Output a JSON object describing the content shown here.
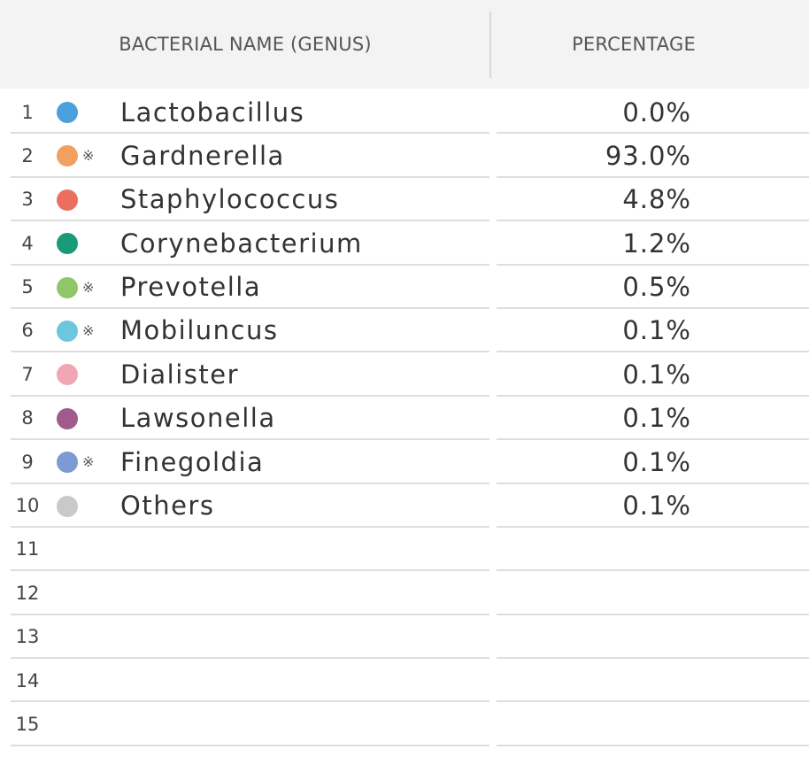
{
  "header": {
    "name_label": "BACTERIAL NAME (GENUS)",
    "percentage_label": "PERCENTAGE"
  },
  "rows": [
    {
      "num": "1",
      "name": "Lactobacillus",
      "mark": "",
      "pct": "0.0%",
      "color": "#4a9fdc"
    },
    {
      "num": "2",
      "name": "Gardnerella",
      "mark": "※",
      "pct": "93.0%",
      "color": "#f1a060"
    },
    {
      "num": "3",
      "name": "Staphylococcus",
      "mark": "",
      "pct": "4.8%",
      "color": "#ec6e5f"
    },
    {
      "num": "4",
      "name": "Corynebacterium",
      "mark": "",
      "pct": "1.2%",
      "color": "#1a9a78"
    },
    {
      "num": "5",
      "name": "Prevotella",
      "mark": "※",
      "pct": "0.5%",
      "color": "#8fc768"
    },
    {
      "num": "6",
      "name": "Mobiluncus",
      "mark": "※",
      "pct": "0.1%",
      "color": "#6cc6dc"
    },
    {
      "num": "7",
      "name": "Dialister",
      "mark": "",
      "pct": "0.1%",
      "color": "#f0a7b3"
    },
    {
      "num": "8",
      "name": "Lawsonella",
      "mark": "",
      "pct": "0.1%",
      "color": "#a05a8c"
    },
    {
      "num": "9",
      "name": "Finegoldia",
      "mark": "※",
      "pct": "0.1%",
      "color": "#7b9bd2"
    },
    {
      "num": "10",
      "name": "Others",
      "mark": "",
      "pct": "0.1%",
      "color": "#c9c9c9"
    },
    {
      "num": "11",
      "name": "",
      "mark": "",
      "pct": "",
      "color": ""
    },
    {
      "num": "12",
      "name": "",
      "mark": "",
      "pct": "",
      "color": ""
    },
    {
      "num": "13",
      "name": "",
      "mark": "",
      "pct": "",
      "color": ""
    },
    {
      "num": "14",
      "name": "",
      "mark": "",
      "pct": "",
      "color": ""
    },
    {
      "num": "15",
      "name": "",
      "mark": "",
      "pct": "",
      "color": ""
    }
  ]
}
